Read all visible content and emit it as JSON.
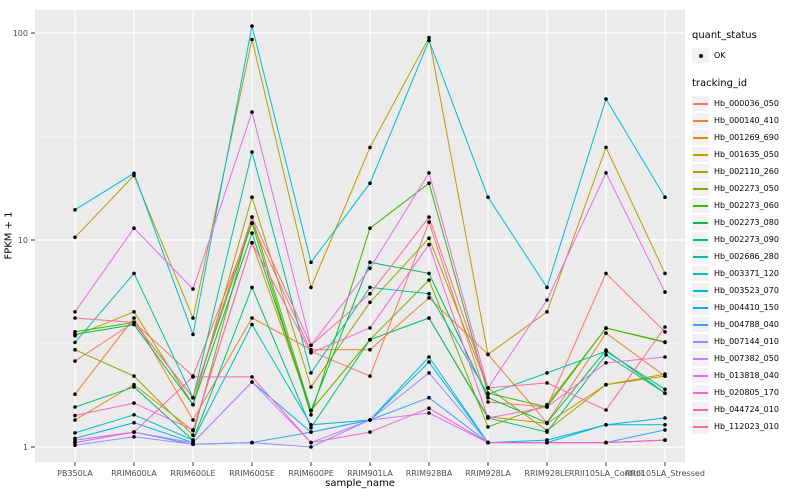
{
  "chart_data": {
    "type": "line",
    "title": "",
    "xlabel": "sample_name",
    "ylabel": "FPKM + 1",
    "y_scale": "log10",
    "y_ticks": [
      1,
      10,
      100
    ],
    "y_minor_ticks": [
      3.162,
      31.62
    ],
    "ylim": [
      0.85,
      130
    ],
    "grid": "on",
    "legend_position": "right",
    "panel_color": "#EBEBEB",
    "grid_color": "#FFFFFF",
    "point_color": "#000000",
    "tick_label_color": "#4D4D4D",
    "categories": [
      "PB350LA",
      "RRIM600LA",
      "RRIM600LE",
      "RRIM600SE",
      "RRIM600PE",
      "RRIM901LA",
      "RRIM928BA",
      "RRIM928LA",
      "RRIM928LE",
      "RRII105LA_Control",
      "RRII105LA_Stressed"
    ],
    "series": [
      {
        "name": "Hb_000036_050",
        "color": "#F8766D",
        "values": [
          2.6,
          4.0,
          2.2,
          12.0,
          2.9,
          2.2,
          12.2,
          1.65,
          1.56,
          6.9,
          3.6
        ]
      },
      {
        "name": "Hb_000140_410",
        "color": "#EA8331",
        "values": [
          1.8,
          4.2,
          1.35,
          4.2,
          2.95,
          2.95,
          5.25,
          2.8,
          1.31,
          3.55,
          2.2
        ]
      },
      {
        "name": "Hb_001269_690",
        "color": "#D89000",
        "values": [
          1.35,
          2.0,
          1.2,
          9.7,
          1.5,
          3.3,
          4.2,
          1.4,
          1.3,
          2.0,
          2.25
        ]
      },
      {
        "name": "Hb_001635_050",
        "color": "#C09B00",
        "values": [
          10.3,
          20.5,
          4.2,
          93.0,
          5.9,
          28.0,
          95.0,
          2.8,
          4.5,
          28.0,
          6.9
        ]
      },
      {
        "name": "Hb_002110_260",
        "color": "#A3A500",
        "values": [
          3.45,
          4.5,
          1.6,
          16.1,
          1.95,
          5.0,
          10.2,
          1.93,
          1.2,
          2.0,
          2.2
        ]
      },
      {
        "name": "Hb_002273_050",
        "color": "#7CAE00",
        "values": [
          2.95,
          2.2,
          1.14,
          12.9,
          1.5,
          3.3,
          6.4,
          1.25,
          1.6,
          3.75,
          3.2
        ]
      },
      {
        "name": "Hb_002273_060",
        "color": "#39B600",
        "values": [
          3.6,
          4.0,
          1.73,
          12.1,
          1.43,
          11.4,
          18.8,
          1.82,
          1.56,
          3.76,
          3.22
        ]
      },
      {
        "name": "Hb_002273_080",
        "color": "#00BB4E",
        "values": [
          3.5,
          3.9,
          1.6,
          10.8,
          1.5,
          7.8,
          6.9,
          1.73,
          1.31,
          2.94,
          1.82
        ]
      },
      {
        "name": "Hb_002273_090",
        "color": "#00BF7D",
        "values": [
          1.56,
          1.95,
          1.08,
          5.9,
          1.24,
          3.3,
          4.2,
          1.38,
          1.18,
          2.79,
          1.82
        ]
      },
      {
        "name": "Hb_002686_280",
        "color": "#00C1A3",
        "values": [
          3.2,
          6.9,
          1.73,
          26.6,
          2.28,
          5.9,
          5.5,
          1.8,
          2.28,
          2.9,
          1.9
        ]
      },
      {
        "name": "Hb_003371_120",
        "color": "#00BFC4",
        "values": [
          1.17,
          1.43,
          1.08,
          3.9,
          1.28,
          1.35,
          2.72,
          1.05,
          1.05,
          1.28,
          1.28
        ]
      },
      {
        "name": "Hb_003523_070",
        "color": "#00BAE0",
        "values": [
          14.0,
          21.0,
          3.5,
          108.0,
          7.8,
          18.8,
          92.0,
          16.1,
          5.9,
          48.0,
          16.1
        ]
      },
      {
        "name": "Hb_004410_150",
        "color": "#00B0F6",
        "values": [
          1.1,
          1.31,
          1.05,
          2.06,
          1.18,
          1.35,
          2.57,
          1.05,
          1.08,
          1.28,
          1.38
        ]
      },
      {
        "name": "Hb_004788_040",
        "color": "#35A2FF",
        "values": [
          1.05,
          1.18,
          1.03,
          1.05,
          1.18,
          1.35,
          1.73,
          1.05,
          1.05,
          1.05,
          1.21
        ]
      },
      {
        "name": "Hb_007144_010",
        "color": "#9590FF",
        "values": [
          1.02,
          1.12,
          1.03,
          1.05,
          1.0,
          1.35,
          2.28,
          1.05,
          1.05,
          1.05,
          1.08
        ]
      },
      {
        "name": "Hb_007382_050",
        "color": "#C77CFF",
        "values": [
          1.05,
          1.18,
          1.05,
          2.06,
          1.05,
          1.35,
          1.46,
          1.05,
          1.05,
          1.05,
          1.08
        ]
      },
      {
        "name": "Hb_013818_040",
        "color": "#E76BF3",
        "values": [
          4.5,
          11.4,
          5.8,
          41.5,
          3.1,
          7.3,
          21.1,
          1.93,
          5.13,
          21.1,
          5.6
        ]
      },
      {
        "name": "Hb_020805_170",
        "color": "#FA62DB",
        "values": [
          1.42,
          1.63,
          1.21,
          9.7,
          2.85,
          3.76,
          9.5,
          1.38,
          1.56,
          2.55,
          2.72
        ]
      },
      {
        "name": "Hb_044724_010",
        "color": "#FF62BC",
        "values": [
          1.08,
          1.18,
          2.18,
          2.18,
          1.05,
          1.18,
          1.54,
          1.05,
          1.05,
          1.05,
          1.08
        ]
      },
      {
        "name": "Hb_112023_010",
        "color": "#FF6A98",
        "values": [
          4.2,
          4.0,
          1.73,
          12.9,
          3.1,
          5.5,
          12.9,
          1.93,
          2.04,
          1.51,
          3.8
        ]
      }
    ]
  },
  "legend": {
    "quant_status_title": "quant_status",
    "quant_status_items": [
      "OK"
    ],
    "tracking_id_title": "tracking_id"
  }
}
